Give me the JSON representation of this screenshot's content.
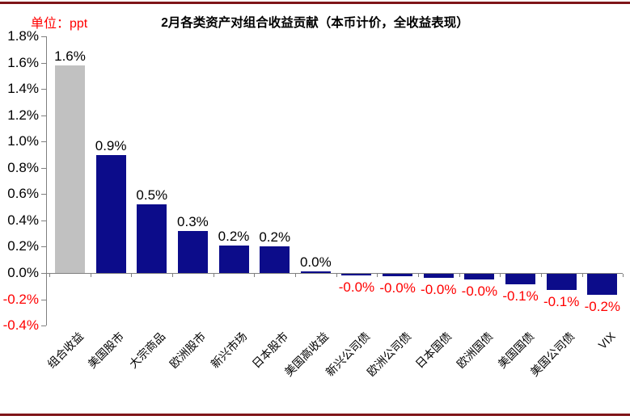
{
  "header": {
    "unit_label": "单位：ppt",
    "title": "2月各类资产对组合收益贡献（本币计价，全收益表现）"
  },
  "chart_data": {
    "type": "bar",
    "title": "2月各类资产对组合收益贡献（本币计价，全收益表现）",
    "unit": "ppt",
    "categories": [
      "组合收益",
      "美国股市",
      "大宗商品",
      "欧洲股市",
      "新兴市场",
      "日本股市",
      "美国高收益",
      "新兴公司债",
      "欧洲公司债",
      "日本国债",
      "欧洲国债",
      "美国国债",
      "美国公司债",
      "VIX"
    ],
    "values": [
      1.58,
      0.9,
      0.52,
      0.32,
      0.21,
      0.2,
      0.01,
      -0.015,
      -0.02,
      -0.03,
      -0.04,
      -0.08,
      -0.12,
      -0.16
    ],
    "value_labels": [
      "1.6%",
      "0.9%",
      "0.5%",
      "0.3%",
      "0.2%",
      "0.2%",
      "0.0%",
      "-0.0%",
      "-0.0%",
      "-0.0%",
      "-0.0%",
      "-0.1%",
      "-0.1%",
      "-0.2%"
    ],
    "ytick_labels": [
      "1.8%",
      "1.6%",
      "1.4%",
      "1.2%",
      "1.0%",
      "0.8%",
      "0.6%",
      "0.4%",
      "0.2%",
      "0.0%",
      "-0.2%",
      "-0.4%"
    ],
    "ylim": [
      -0.4,
      1.8
    ],
    "grid": "off",
    "legend": "none",
    "highlight_index": 0,
    "colors": {
      "highlight_bar": "#c1c1c1",
      "bar": "#0c0c8a",
      "positive_text": "#000000",
      "negative_text": "#ff0000",
      "axis": "#808080",
      "rule": "#7f1519",
      "unit_text": "#ff0000"
    }
  }
}
